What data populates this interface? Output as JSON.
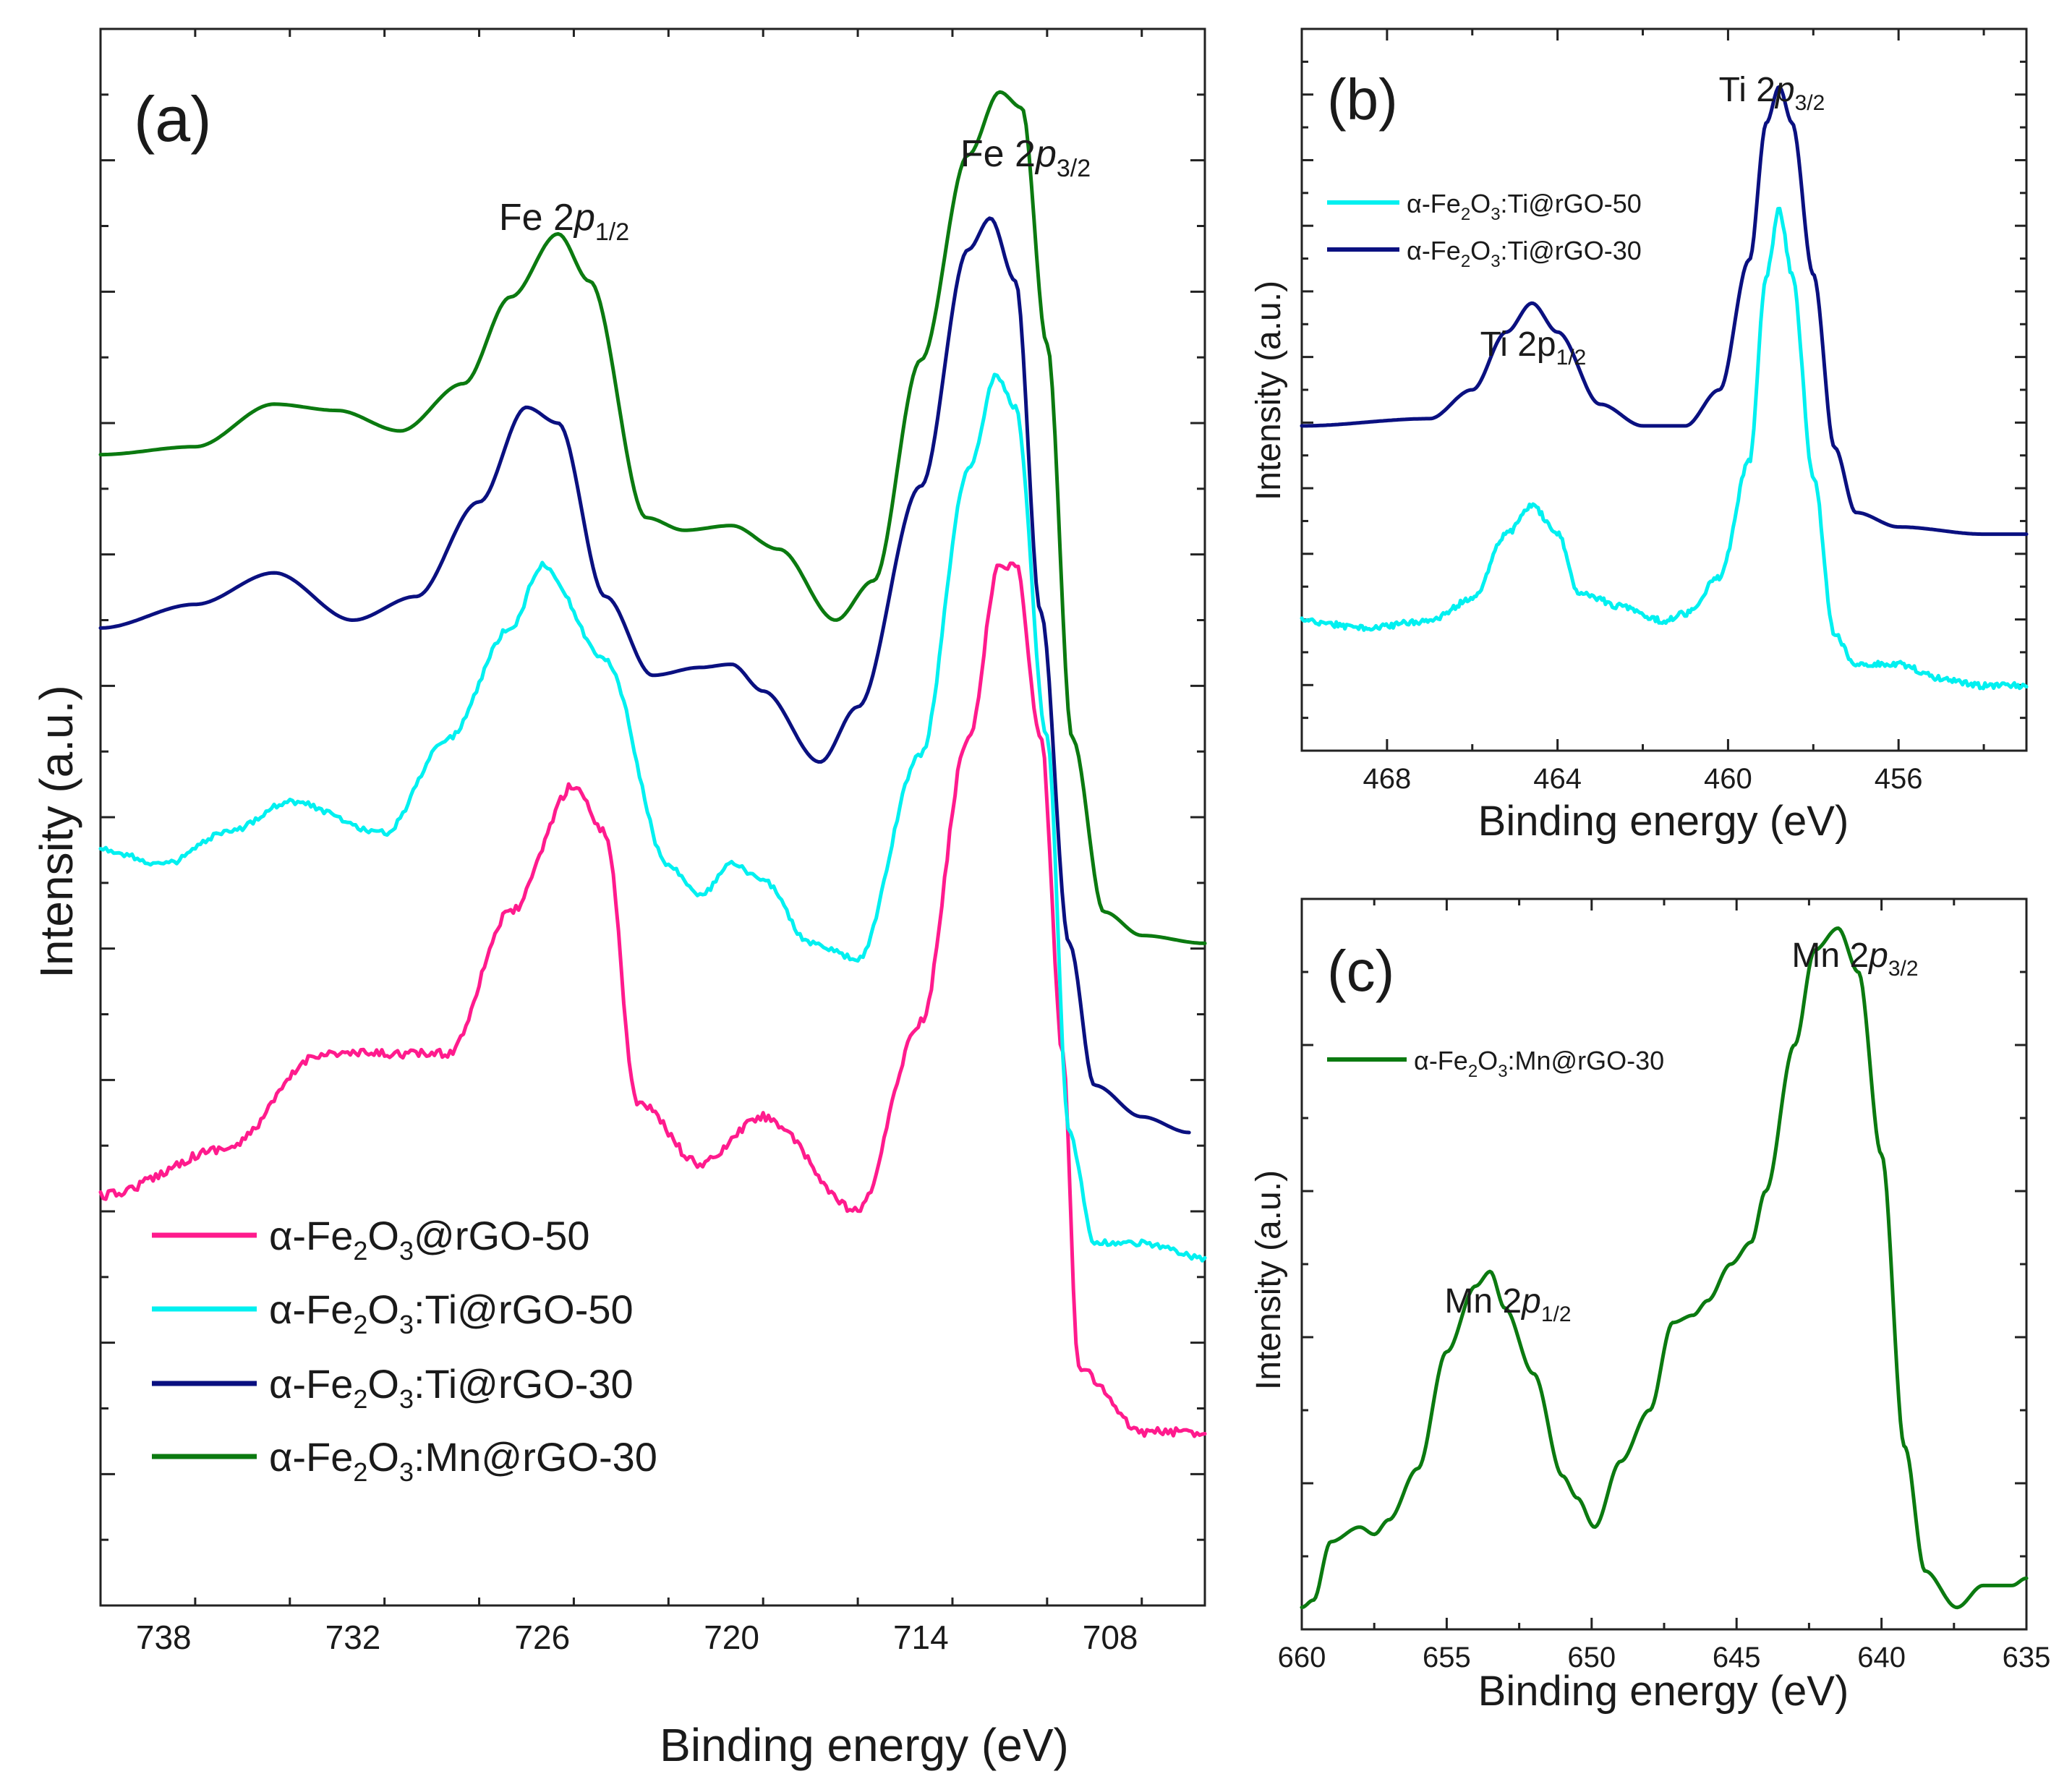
{
  "chart_data": [
    {
      "id": "a",
      "type": "line",
      "panel_label": "(a)",
      "xlabel": "Binding energy (eV)",
      "ylabel": "Intensity (a.u.)",
      "xlim": [
        740,
        705
      ],
      "x_ticks": [
        "738",
        "732",
        "726",
        "720",
        "714",
        "708"
      ],
      "x_tick_values": [
        738,
        732,
        726,
        720,
        714,
        708
      ],
      "legend_position": "bottom-left",
      "annotations": [
        {
          "text": "Fe 2p1/2",
          "x": 725
        },
        {
          "text": "Fe 2p3/2",
          "x": 711.5
        }
      ],
      "series": [
        {
          "name": "α-Fe2O3@rGO-50",
          "color": "#ff1b8d",
          "noise": 6,
          "x": [
            740,
            736,
            733,
            729,
            727,
            725,
            724,
            723,
            721,
            719,
            716,
            714,
            712.5,
            711.5,
            711,
            710.2,
            709.5,
            709,
            707,
            705
          ],
          "y": [
            0.26,
            0.29,
            0.35,
            0.35,
            0.44,
            0.52,
            0.49,
            0.32,
            0.28,
            0.31,
            0.25,
            0.37,
            0.55,
            0.66,
            0.66,
            0.55,
            0.35,
            0.15,
            0.11,
            0.11
          ]
        },
        {
          "name": "α-Fe2O3:Ti@rGO-50",
          "color": "#00f0f0",
          "noise": 4,
          "x": [
            740,
            738,
            736,
            734,
            731,
            729,
            727,
            726,
            724,
            722,
            721,
            720,
            719,
            717.5,
            716,
            714,
            712.5,
            711.6,
            711,
            710,
            709.3,
            708.5,
            707,
            705
          ],
          "y": [
            0.48,
            0.47,
            0.49,
            0.51,
            0.49,
            0.55,
            0.62,
            0.66,
            0.6,
            0.47,
            0.45,
            0.47,
            0.46,
            0.42,
            0.41,
            0.54,
            0.72,
            0.78,
            0.76,
            0.55,
            0.3,
            0.23,
            0.23,
            0.22
          ]
        },
        {
          "name": "α-Fe2O3:Ti@rGO-30",
          "color": "#0a1080",
          "noise": 0,
          "x": [
            740,
            737,
            734.5,
            732,
            730,
            728,
            726.5,
            725.5,
            724,
            722.5,
            721,
            720,
            719,
            717.2,
            716,
            714,
            712.5,
            711.8,
            711,
            710.2,
            709.3,
            708.5,
            707,
            705.5
          ],
          "y": [
            0.62,
            0.635,
            0.655,
            0.625,
            0.64,
            0.7,
            0.76,
            0.75,
            0.64,
            0.59,
            0.595,
            0.597,
            0.58,
            0.535,
            0.57,
            0.71,
            0.86,
            0.88,
            0.84,
            0.63,
            0.42,
            0.33,
            0.31,
            0.3
          ]
        },
        {
          "name": "α-Fe2O3:Mn@rGO-30",
          "color": "#0b7a10",
          "noise": 0,
          "x": [
            740,
            737,
            734.5,
            732.5,
            730.5,
            728.5,
            727,
            725.5,
            724.5,
            722.7,
            721.5,
            720,
            718.5,
            716.7,
            715.5,
            714,
            712.5,
            711.5,
            710.8,
            710,
            709.2,
            708.2,
            707,
            705
          ],
          "y": [
            0.73,
            0.735,
            0.762,
            0.758,
            0.745,
            0.775,
            0.83,
            0.87,
            0.84,
            0.69,
            0.682,
            0.685,
            0.67,
            0.625,
            0.65,
            0.79,
            0.92,
            0.96,
            0.95,
            0.8,
            0.55,
            0.44,
            0.425,
            0.42
          ]
        }
      ]
    },
    {
      "id": "b",
      "type": "line",
      "panel_label": "(b)",
      "xlabel": "Binding energy (eV)",
      "ylabel": "Intensity (a.u.)",
      "xlim": [
        470,
        453
      ],
      "x_ticks": [
        "468",
        "464",
        "460",
        "456"
      ],
      "x_tick_values": [
        468,
        464,
        460,
        456
      ],
      "legend_position": "top-left",
      "annotations": [
        {
          "text": "Ti 2p1/2",
          "x": 464.6
        },
        {
          "text": "Ti 2p3/2",
          "x": 458.8
        }
      ],
      "series": [
        {
          "name": "α-Fe2O3:Ti@rGO-50",
          "color": "#00f0f0",
          "noise": 4,
          "x": [
            470,
            468.5,
            467,
            466,
            465.2,
            464.6,
            464,
            463.5,
            462.5,
            461.5,
            461,
            460.2,
            459.5,
            459.1,
            458.8,
            458.5,
            458,
            457.5,
            457,
            456,
            455,
            454,
            453
          ],
          "y": [
            0.18,
            0.17,
            0.18,
            0.21,
            0.3,
            0.34,
            0.3,
            0.22,
            0.2,
            0.18,
            0.19,
            0.24,
            0.4,
            0.66,
            0.75,
            0.66,
            0.38,
            0.16,
            0.12,
            0.12,
            0.1,
            0.09,
            0.09
          ]
        },
        {
          "name": "α-Fe2O3:Ti@rGO-30",
          "color": "#0a1080",
          "noise": 0,
          "x": [
            470,
            467,
            466,
            465.2,
            464.6,
            464,
            463,
            462,
            461,
            460.2,
            459.5,
            459.1,
            458.8,
            458.5,
            458,
            457.5,
            457,
            456,
            454,
            453
          ],
          "y": [
            0.45,
            0.46,
            0.5,
            0.58,
            0.62,
            0.58,
            0.48,
            0.45,
            0.45,
            0.5,
            0.68,
            0.87,
            0.92,
            0.87,
            0.66,
            0.42,
            0.33,
            0.31,
            0.3,
            0.3
          ]
        }
      ]
    },
    {
      "id": "c",
      "type": "line",
      "panel_label": "(c)",
      "xlabel": "Binding energy (eV)",
      "ylabel": "Intensity (a.u.)",
      "xlim": [
        660,
        635
      ],
      "x_ticks": [
        "660",
        "655",
        "650",
        "645",
        "640",
        "635"
      ],
      "x_tick_values": [
        660,
        655,
        650,
        645,
        640,
        635
      ],
      "legend_position": "top-left",
      "annotations": [
        {
          "text": "Mn 2p1/2",
          "x": 653.5
        },
        {
          "text": "Mn 2p3/2",
          "x": 641.5
        }
      ],
      "series": [
        {
          "name": "α-Fe2O3:Mn@rGO-30",
          "color": "#0b7a10",
          "noise": 0,
          "x": [
            660,
            659.6,
            659,
            658,
            657.5,
            657,
            656,
            655,
            654,
            653.5,
            653,
            652,
            651,
            650.5,
            649.9,
            649,
            648,
            647.2,
            646.5,
            646,
            645.2,
            644.5,
            644,
            643,
            642.3,
            641.5,
            640.8,
            640,
            639.2,
            638.5,
            637.4,
            636.5,
            635.5,
            635
          ],
          "y": [
            0.03,
            0.04,
            0.12,
            0.14,
            0.13,
            0.15,
            0.22,
            0.38,
            0.47,
            0.49,
            0.44,
            0.35,
            0.21,
            0.18,
            0.14,
            0.23,
            0.3,
            0.42,
            0.43,
            0.45,
            0.5,
            0.53,
            0.6,
            0.8,
            0.93,
            0.96,
            0.9,
            0.65,
            0.25,
            0.08,
            0.03,
            0.06,
            0.06,
            0.07
          ]
        }
      ]
    }
  ]
}
